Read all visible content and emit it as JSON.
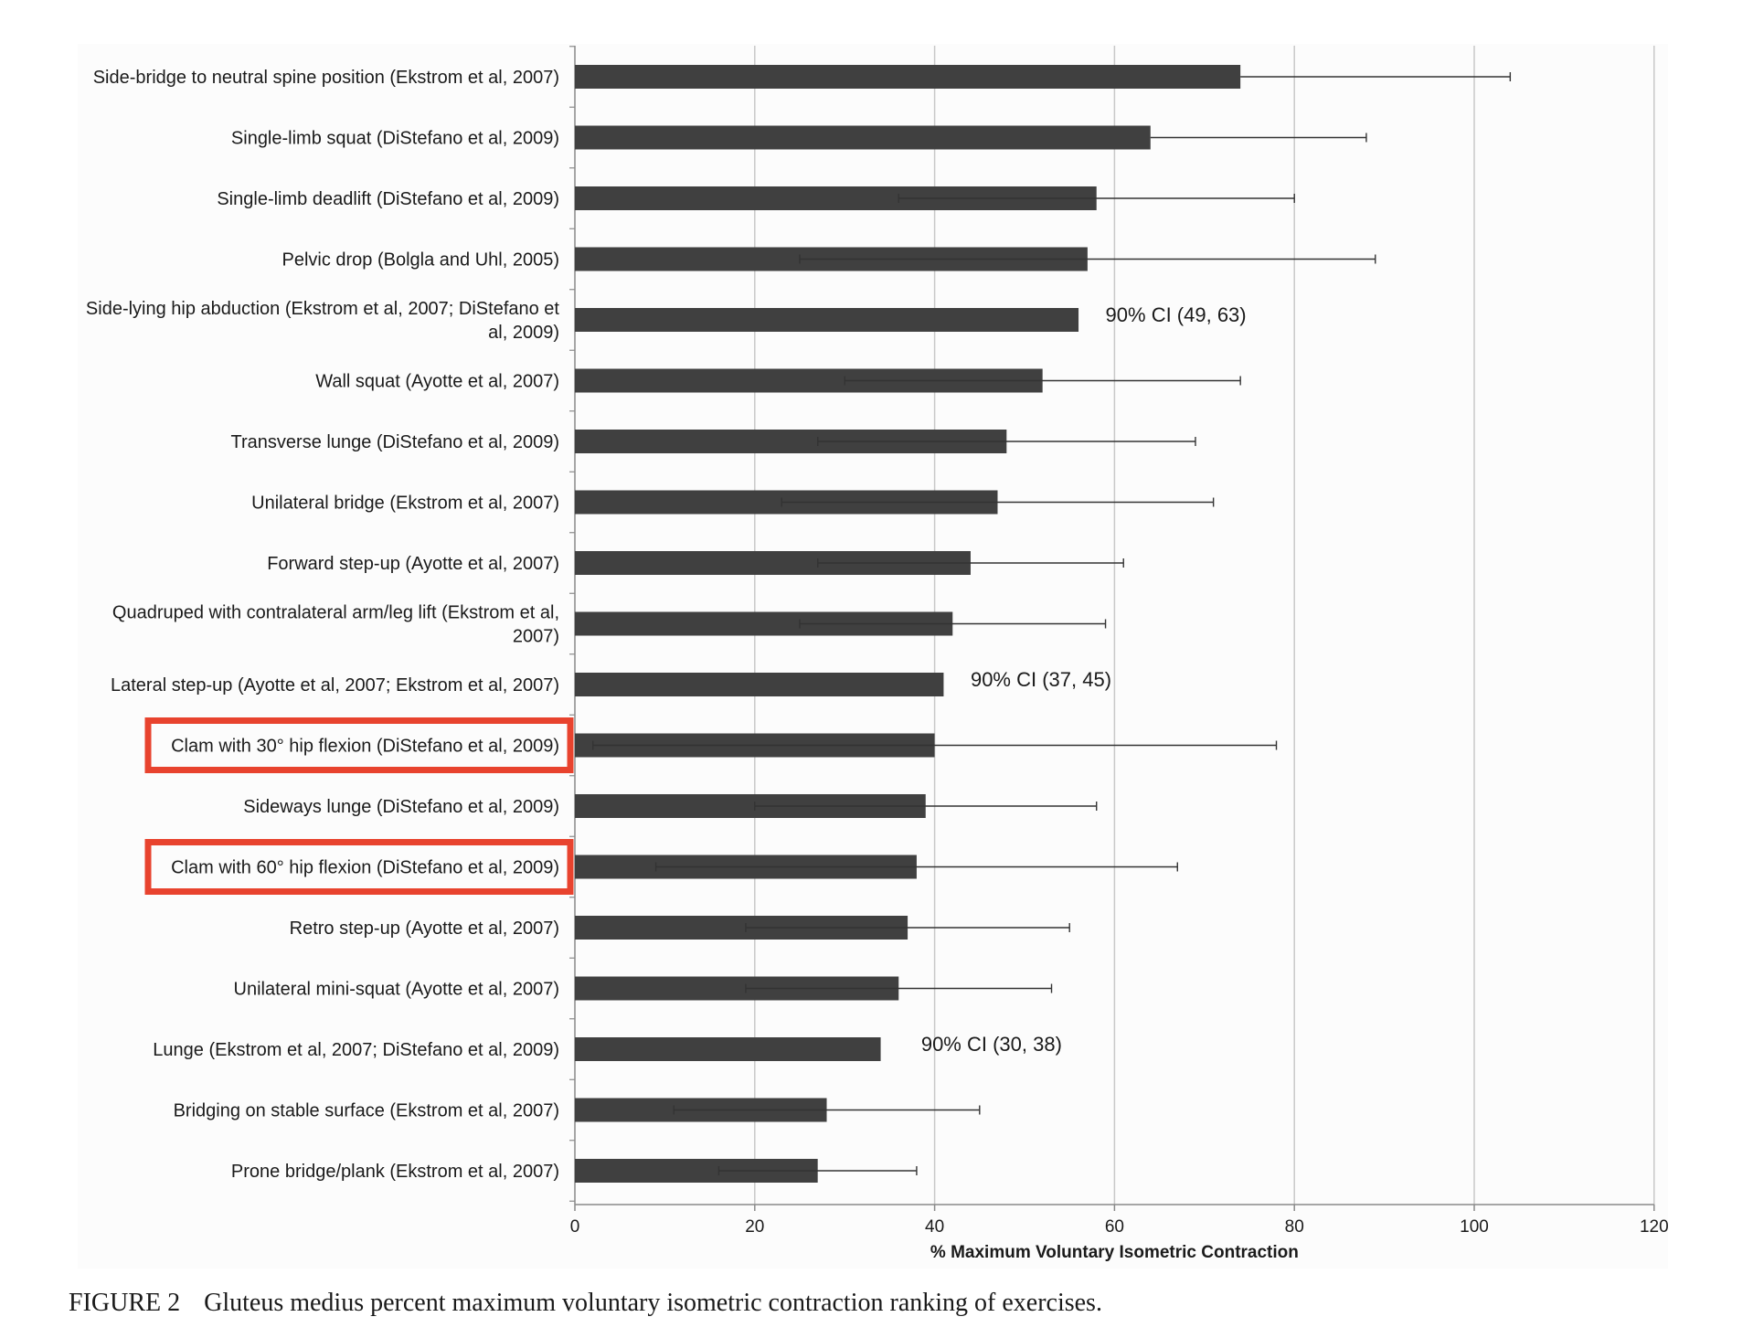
{
  "chart_data": {
    "type": "bar",
    "orientation": "horizontal",
    "xlabel": "% Maximum Voluntary Isometric Contraction",
    "xlim": [
      0,
      120
    ],
    "xticks": [
      0,
      20,
      40,
      60,
      80,
      100,
      120
    ],
    "grid": true,
    "bar_color": "#404040",
    "highlight_color": "#e8432e",
    "categories": [
      "Side-bridge to neutral spine position (Ekstrom et al, 2007)",
      "Single-limb squat (DiStefano et al, 2009)",
      "Single-limb deadlift (DiStefano et al, 2009)",
      "Pelvic drop (Bolgla and Uhl, 2005)",
      "Side-lying hip abduction (Ekstrom et al, 2007; DiStefano et al, 2009)",
      "Wall squat (Ayotte et al, 2007)",
      "Transverse lunge (DiStefano et al, 2009)",
      "Unilateral bridge (Ekstrom et al, 2007)",
      "Forward step-up (Ayotte et al, 2007)",
      "Quadruped with contralateral arm/leg lift (Ekstrom et al, 2007)",
      "Lateral step-up (Ayotte et al, 2007; Ekstrom et al, 2007)",
      "Clam with 30° hip flexion (DiStefano et al, 2009)",
      "Sideways lunge (DiStefano et al, 2009)",
      "Clam with 60° hip flexion (DiStefano et al, 2009)",
      "Retro step-up (Ayotte et al, 2007)",
      "Unilateral mini-squat (Ayotte et al, 2007)",
      "Lunge (Ekstrom et al, 2007; DiStefano et al, 2009)",
      "Bridging on stable surface (Ekstrom et al, 2007)",
      "Prone bridge/plank (Ekstrom et al, 2007)"
    ],
    "label_lines": [
      [
        "Side-bridge to neutral spine position (Ekstrom et al, 2007)"
      ],
      [
        "Single-limb squat (DiStefano et al, 2009)"
      ],
      [
        "Single-limb deadlift (DiStefano et al, 2009)"
      ],
      [
        "Pelvic drop (Bolgla and Uhl, 2005)"
      ],
      [
        "Side-lying hip abduction (Ekstrom et al, 2007; DiStefano et",
        "al, 2009)"
      ],
      [
        "Wall squat (Ayotte et al, 2007)"
      ],
      [
        "Transverse lunge (DiStefano et al, 2009)"
      ],
      [
        "Unilateral bridge (Ekstrom et al, 2007)"
      ],
      [
        "Forward step-up (Ayotte et al, 2007)"
      ],
      [
        "Quadruped with contralateral arm/leg lift (Ekstrom et al,",
        "2007)"
      ],
      [
        "Lateral step-up (Ayotte et al, 2007; Ekstrom et al, 2007)"
      ],
      [
        "Clam with 30° hip flexion (DiStefano et al, 2009)"
      ],
      [
        "Sideways lunge (DiStefano et al, 2009)"
      ],
      [
        "Clam with 60° hip flexion (DiStefano et al, 2009)"
      ],
      [
        "Retro step-up (Ayotte et al, 2007)"
      ],
      [
        "Unilateral mini-squat (Ayotte et al, 2007)"
      ],
      [
        "Lunge (Ekstrom et al, 2007; DiStefano et al, 2009)"
      ],
      [
        "Bridging on stable surface (Ekstrom et al, 2007)"
      ],
      [
        "Prone bridge/plank (Ekstrom et al, 2007)"
      ]
    ],
    "values": [
      74,
      64,
      58,
      57,
      56,
      52,
      48,
      47,
      44,
      42,
      41,
      40,
      39,
      38,
      37,
      36,
      34,
      28,
      27
    ],
    "error_low": [
      null,
      null,
      36,
      25,
      null,
      30,
      27,
      23,
      27,
      25,
      null,
      2,
      20,
      9,
      19,
      19,
      null,
      11,
      16
    ],
    "error_high": [
      104,
      88,
      80,
      89,
      null,
      74,
      69,
      71,
      61,
      59,
      null,
      78,
      58,
      67,
      55,
      53,
      null,
      45,
      38
    ],
    "highlighted": [
      11,
      13
    ],
    "annotations": [
      {
        "bar_index": 4,
        "text": "90% CI (49, 63)",
        "x": 59
      },
      {
        "bar_index": 10,
        "text": "90% CI (37, 45)",
        "x": 44
      },
      {
        "bar_index": 16,
        "text": "90% CI (30, 38)",
        "x": 38.5
      }
    ]
  },
  "caption": {
    "figure_number": "FIGURE 2",
    "text": "Gluteus medius percent maximum voluntary isometric contraction ranking of exercises."
  }
}
